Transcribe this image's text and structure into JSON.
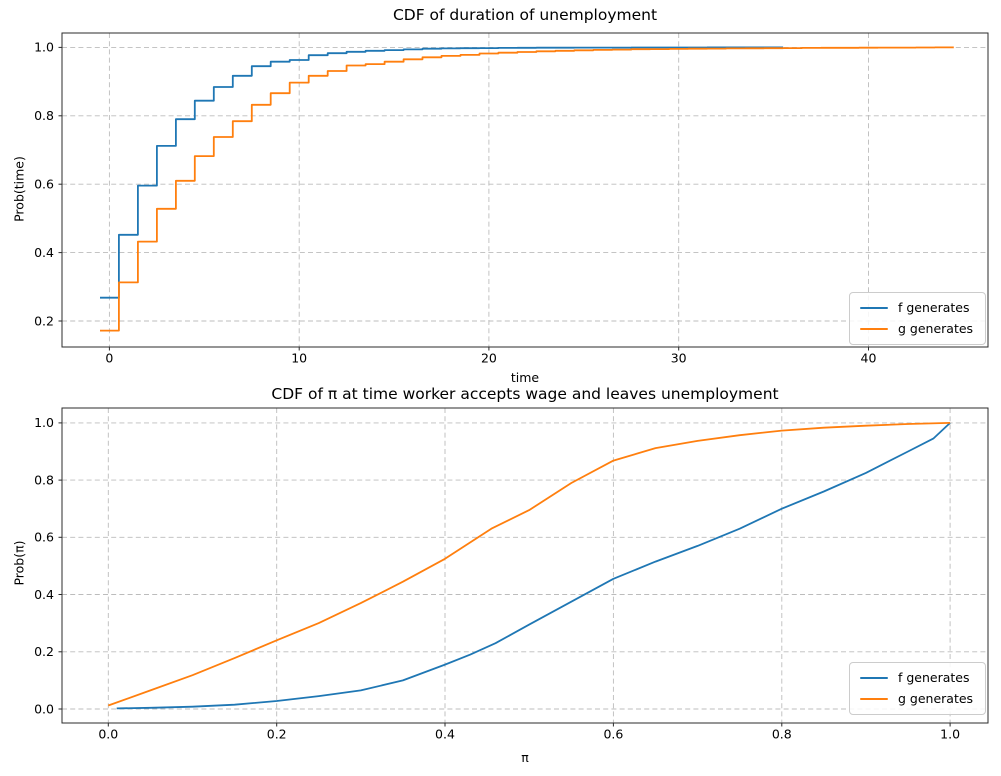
{
  "figure": {
    "background": "#ffffff",
    "colors": {
      "grid": "#bcbcbc",
      "spine": "#2b2b2b",
      "text": "#000000",
      "f_series": "#1f77b4",
      "g_series": "#ff7f0e"
    }
  },
  "chart_data": [
    {
      "type": "step",
      "title": "CDF of duration of unemployment",
      "xlabel": "time",
      "ylabel": "Prob(time)",
      "xlim": [
        -2.5,
        46.3
      ],
      "ylim": [
        0.124,
        1.042
      ],
      "xticks": [
        "0",
        "10",
        "20",
        "30",
        "40"
      ],
      "yticks": [
        "0.2",
        "0.4",
        "0.6",
        "0.8",
        "1.0"
      ],
      "grid": true,
      "grid_style": "dashed",
      "legend_position": "lower right",
      "series": [
        {
          "name": "f generates",
          "color": "#1f77b4",
          "step": "mid",
          "x_start": 0,
          "values": [
            0.268,
            0.452,
            0.596,
            0.712,
            0.79,
            0.844,
            0.884,
            0.917,
            0.945,
            0.958,
            0.963,
            0.977,
            0.983,
            0.987,
            0.99,
            0.992,
            0.994,
            0.996,
            0.997,
            0.9975,
            0.998,
            0.9984,
            0.9987,
            0.999,
            0.9991,
            0.9992,
            0.9993,
            0.9994,
            0.9995,
            0.9996,
            0.9996,
            0.9997,
            0.9998,
            0.9998,
            0.9999,
            1.0
          ]
        },
        {
          "name": "g generates",
          "color": "#ff7f0e",
          "step": "mid",
          "x_start": 0,
          "values": [
            0.172,
            0.313,
            0.432,
            0.528,
            0.61,
            0.682,
            0.738,
            0.784,
            0.832,
            0.866,
            0.897,
            0.917,
            0.931,
            0.947,
            0.951,
            0.958,
            0.965,
            0.971,
            0.975,
            0.978,
            0.982,
            0.9845,
            0.9865,
            0.9885,
            0.99,
            0.9915,
            0.9925,
            0.9935,
            0.9945,
            0.995,
            0.9955,
            0.996,
            0.9965,
            0.997,
            0.9974,
            0.9977,
            0.998,
            0.9983,
            0.9986,
            0.9988,
            0.999,
            0.9992,
            0.9994,
            0.9997,
            1.0
          ]
        }
      ]
    },
    {
      "type": "line",
      "title": "CDF of π at time worker accepts wage and leaves unemployment",
      "xlabel": "π",
      "ylabel": "Prob(π)",
      "xlim": [
        -0.055,
        1.045
      ],
      "ylim": [
        -0.049,
        1.052
      ],
      "xticks": [
        "0.0",
        "0.2",
        "0.4",
        "0.6",
        "0.8",
        "1.0"
      ],
      "yticks": [
        "0.0",
        "0.2",
        "0.4",
        "0.6",
        "0.8",
        "1.0"
      ],
      "grid": true,
      "grid_style": "dashed",
      "legend_position": "lower right",
      "series": [
        {
          "name": "f generates",
          "color": "#1f77b4",
          "x": [
            0.01,
            0.05,
            0.1,
            0.15,
            0.2,
            0.25,
            0.3,
            0.35,
            0.4,
            0.43,
            0.46,
            0.5,
            0.55,
            0.6,
            0.65,
            0.7,
            0.75,
            0.8,
            0.85,
            0.9,
            0.95,
            0.98,
            1.0
          ],
          "y": [
            0.002,
            0.004,
            0.008,
            0.015,
            0.028,
            0.045,
            0.065,
            0.1,
            0.155,
            0.19,
            0.23,
            0.295,
            0.375,
            0.455,
            0.515,
            0.57,
            0.63,
            0.7,
            0.76,
            0.825,
            0.9,
            0.945,
            1.0
          ]
        },
        {
          "name": "g generates",
          "color": "#ff7f0e",
          "x": [
            0.0,
            0.05,
            0.1,
            0.15,
            0.2,
            0.25,
            0.3,
            0.35,
            0.4,
            0.455,
            0.5,
            0.55,
            0.6,
            0.65,
            0.7,
            0.75,
            0.8,
            0.85,
            0.9,
            0.95,
            1.0
          ],
          "y": [
            0.012,
            0.065,
            0.118,
            0.178,
            0.24,
            0.3,
            0.37,
            0.445,
            0.525,
            0.63,
            0.695,
            0.79,
            0.868,
            0.912,
            0.937,
            0.957,
            0.973,
            0.983,
            0.99,
            0.996,
            1.0
          ]
        }
      ]
    }
  ]
}
